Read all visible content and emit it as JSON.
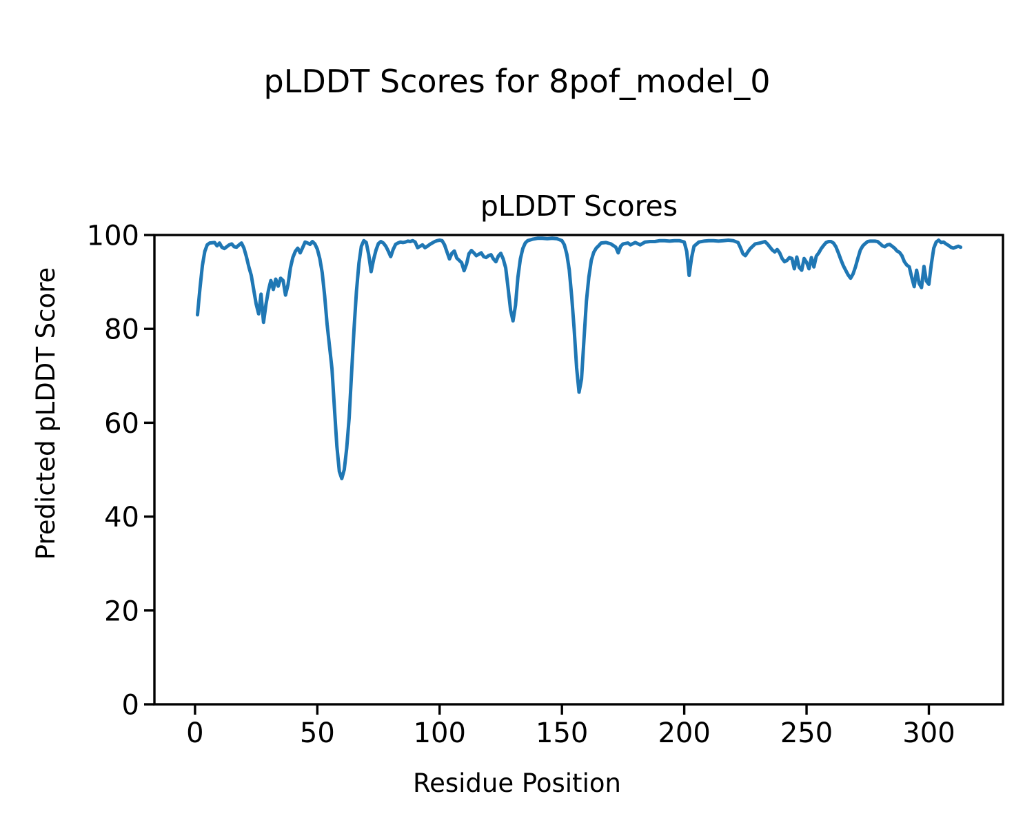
{
  "chart_data": {
    "type": "line",
    "suptitle": "pLDDT Scores for 8pof_model_0",
    "title": "pLDDT Scores",
    "xlabel": "Residue Position",
    "ylabel": "Predicted pLDDT Score",
    "xlim": [
      -16.6,
      330.3
    ],
    "ylim": [
      0,
      100
    ],
    "xticks": [
      0,
      50,
      100,
      150,
      200,
      250,
      300
    ],
    "yticks": [
      0,
      20,
      40,
      60,
      80,
      100
    ],
    "grid": false,
    "legend": "none",
    "line_color": "#1f77b4",
    "axis_color": "#000000",
    "background_color": "#ffffff",
    "series": [
      {
        "name": "pLDDT score",
        "points": [
          [
            1,
            83.0
          ],
          [
            2,
            88.5
          ],
          [
            3,
            93.5
          ],
          [
            4,
            96.5
          ],
          [
            5,
            97.9
          ],
          [
            6,
            98.3
          ],
          [
            8,
            98.4
          ],
          [
            9,
            97.7
          ],
          [
            10,
            98.3
          ],
          [
            11,
            97.4
          ],
          [
            12,
            97.1
          ],
          [
            13,
            97.5
          ],
          [
            14,
            97.9
          ],
          [
            15,
            98.1
          ],
          [
            16,
            97.5
          ],
          [
            17,
            97.4
          ],
          [
            18,
            97.9
          ],
          [
            19,
            98.3
          ],
          [
            20,
            97.2
          ],
          [
            21,
            95.4
          ],
          [
            22,
            93.2
          ],
          [
            23,
            91.4
          ],
          [
            24,
            88.3
          ],
          [
            25,
            85.3
          ],
          [
            26,
            83.2
          ],
          [
            27,
            87.4
          ],
          [
            28,
            81.4
          ],
          [
            29,
            85.2
          ],
          [
            30,
            88.2
          ],
          [
            31,
            90.3
          ],
          [
            32,
            88.4
          ],
          [
            33,
            90.6
          ],
          [
            34,
            89.1
          ],
          [
            35,
            90.8
          ],
          [
            36,
            90.3
          ],
          [
            37,
            87.2
          ],
          [
            38,
            89.4
          ],
          [
            39,
            93.0
          ],
          [
            40,
            95.2
          ],
          [
            41,
            96.5
          ],
          [
            42,
            97.2
          ],
          [
            43,
            96.2
          ],
          [
            44,
            97.3
          ],
          [
            45,
            98.5
          ],
          [
            46,
            98.3
          ],
          [
            47,
            98.0
          ],
          [
            48,
            98.6
          ],
          [
            49,
            98.1
          ],
          [
            50,
            97.0
          ],
          [
            51,
            95.0
          ],
          [
            52,
            92.0
          ],
          [
            53,
            87.0
          ],
          [
            54,
            81.0
          ],
          [
            55,
            76.2
          ],
          [
            56,
            71.5
          ],
          [
            57,
            63.0
          ],
          [
            58,
            55.0
          ],
          [
            59,
            49.6
          ],
          [
            60,
            48.1
          ],
          [
            61,
            50.0
          ],
          [
            62,
            54.5
          ],
          [
            63,
            61.0
          ],
          [
            64,
            70.5
          ],
          [
            65,
            80.0
          ],
          [
            66,
            88.0
          ],
          [
            67,
            94.0
          ],
          [
            68,
            97.6
          ],
          [
            69,
            98.8
          ],
          [
            70,
            98.4
          ],
          [
            71,
            95.8
          ],
          [
            72,
            92.2
          ],
          [
            73,
            94.8
          ],
          [
            74,
            96.8
          ],
          [
            75,
            98.2
          ],
          [
            76,
            98.6
          ],
          [
            77,
            98.3
          ],
          [
            78,
            97.6
          ],
          [
            79,
            96.6
          ],
          [
            80,
            95.4
          ],
          [
            81,
            96.9
          ],
          [
            82,
            98.0
          ],
          [
            83,
            98.3
          ],
          [
            84,
            98.5
          ],
          [
            85,
            98.4
          ],
          [
            86,
            98.5
          ],
          [
            87,
            98.7
          ],
          [
            88,
            98.6
          ],
          [
            89,
            98.8
          ],
          [
            90,
            98.5
          ],
          [
            91,
            97.3
          ],
          [
            92,
            97.6
          ],
          [
            93,
            97.9
          ],
          [
            94,
            97.3
          ],
          [
            95,
            97.6
          ],
          [
            96,
            98.0
          ],
          [
            97,
            98.3
          ],
          [
            98,
            98.6
          ],
          [
            99,
            98.8
          ],
          [
            100,
            98.9
          ],
          [
            101,
            98.8
          ],
          [
            102,
            97.9
          ],
          [
            103,
            96.4
          ],
          [
            104,
            94.9
          ],
          [
            105,
            96.1
          ],
          [
            106,
            96.6
          ],
          [
            107,
            95.1
          ],
          [
            108,
            94.6
          ],
          [
            109,
            94.1
          ],
          [
            110,
            92.4
          ],
          [
            111,
            93.8
          ],
          [
            112,
            96.0
          ],
          [
            113,
            96.7
          ],
          [
            114,
            96.2
          ],
          [
            115,
            95.6
          ],
          [
            116,
            95.9
          ],
          [
            117,
            96.2
          ],
          [
            118,
            95.4
          ],
          [
            119,
            95.2
          ],
          [
            120,
            95.6
          ],
          [
            121,
            95.8
          ],
          [
            122,
            94.9
          ],
          [
            123,
            94.3
          ],
          [
            124,
            95.5
          ],
          [
            125,
            96.1
          ],
          [
            126,
            94.9
          ],
          [
            127,
            93.0
          ],
          [
            128,
            88.7
          ],
          [
            129,
            84.0
          ],
          [
            130,
            81.7
          ],
          [
            131,
            85.0
          ],
          [
            132,
            91.0
          ],
          [
            133,
            94.9
          ],
          [
            134,
            97.1
          ],
          [
            135,
            98.3
          ],
          [
            136,
            98.8
          ],
          [
            138,
            99.1
          ],
          [
            140,
            99.3
          ],
          [
            142,
            99.3
          ],
          [
            144,
            99.2
          ],
          [
            146,
            99.3
          ],
          [
            148,
            99.2
          ],
          [
            150,
            98.8
          ],
          [
            151,
            97.9
          ],
          [
            152,
            95.9
          ],
          [
            153,
            92.6
          ],
          [
            154,
            86.8
          ],
          [
            155,
            80.0
          ],
          [
            156,
            71.7
          ],
          [
            157,
            66.5
          ],
          [
            158,
            69.3
          ],
          [
            159,
            77.6
          ],
          [
            160,
            85.9
          ],
          [
            161,
            91.0
          ],
          [
            162,
            94.6
          ],
          [
            163,
            96.3
          ],
          [
            164,
            97.2
          ],
          [
            165,
            97.7
          ],
          [
            166,
            98.3
          ],
          [
            168,
            98.4
          ],
          [
            170,
            98.1
          ],
          [
            172,
            97.4
          ],
          [
            173,
            96.2
          ],
          [
            174,
            97.6
          ],
          [
            175,
            98.1
          ],
          [
            177,
            98.3
          ],
          [
            178,
            97.9
          ],
          [
            180,
            98.4
          ],
          [
            182,
            97.9
          ],
          [
            184,
            98.5
          ],
          [
            186,
            98.6
          ],
          [
            188,
            98.6
          ],
          [
            190,
            98.8
          ],
          [
            192,
            98.8
          ],
          [
            194,
            98.7
          ],
          [
            196,
            98.8
          ],
          [
            198,
            98.8
          ],
          [
            200,
            98.5
          ],
          [
            201,
            96.5
          ],
          [
            202,
            91.4
          ],
          [
            203,
            95.2
          ],
          [
            204,
            97.6
          ],
          [
            206,
            98.5
          ],
          [
            208,
            98.7
          ],
          [
            210,
            98.8
          ],
          [
            212,
            98.8
          ],
          [
            214,
            98.7
          ],
          [
            216,
            98.8
          ],
          [
            218,
            98.9
          ],
          [
            220,
            98.8
          ],
          [
            222,
            98.4
          ],
          [
            223,
            97.3
          ],
          [
            224,
            96.0
          ],
          [
            225,
            95.6
          ],
          [
            226,
            96.4
          ],
          [
            227,
            97.1
          ],
          [
            229,
            98.1
          ],
          [
            231,
            98.3
          ],
          [
            233,
            98.6
          ],
          [
            234,
            98.1
          ],
          [
            236,
            96.8
          ],
          [
            237,
            96.4
          ],
          [
            238,
            96.9
          ],
          [
            239,
            96.2
          ],
          [
            240,
            95.0
          ],
          [
            241,
            94.3
          ],
          [
            242,
            94.6
          ],
          [
            243,
            95.2
          ],
          [
            244,
            95.0
          ],
          [
            245,
            92.8
          ],
          [
            246,
            95.3
          ],
          [
            247,
            93.1
          ],
          [
            248,
            92.5
          ],
          [
            249,
            95.0
          ],
          [
            250,
            94.2
          ],
          [
            251,
            92.8
          ],
          [
            252,
            95.2
          ],
          [
            253,
            93.2
          ],
          [
            254,
            95.5
          ],
          [
            255,
            96.2
          ],
          [
            256,
            97.1
          ],
          [
            257,
            97.8
          ],
          [
            258,
            98.4
          ],
          [
            259,
            98.6
          ],
          [
            260,
            98.6
          ],
          [
            261,
            98.3
          ],
          [
            262,
            97.5
          ],
          [
            263,
            96.2
          ],
          [
            264,
            94.8
          ],
          [
            265,
            93.5
          ],
          [
            266,
            92.5
          ],
          [
            267,
            91.5
          ],
          [
            268,
            90.8
          ],
          [
            269,
            91.7
          ],
          [
            270,
            93.2
          ],
          [
            271,
            95.1
          ],
          [
            272,
            96.8
          ],
          [
            273,
            97.7
          ],
          [
            274,
            98.2
          ],
          [
            275,
            98.6
          ],
          [
            276,
            98.7
          ],
          [
            277,
            98.7
          ],
          [
            278,
            98.7
          ],
          [
            279,
            98.6
          ],
          [
            280,
            98.2
          ],
          [
            281,
            97.7
          ],
          [
            282,
            97.5
          ],
          [
            283,
            97.9
          ],
          [
            284,
            98.0
          ],
          [
            285,
            97.6
          ],
          [
            286,
            97.2
          ],
          [
            287,
            96.6
          ],
          [
            288,
            96.3
          ],
          [
            289,
            95.6
          ],
          [
            290,
            94.3
          ],
          [
            291,
            93.6
          ],
          [
            292,
            93.2
          ],
          [
            293,
            91.0
          ],
          [
            294,
            89.0
          ],
          [
            295,
            92.5
          ],
          [
            296,
            89.7
          ],
          [
            297,
            88.8
          ],
          [
            298,
            93.3
          ],
          [
            299,
            90.2
          ],
          [
            300,
            89.5
          ],
          [
            301,
            93.7
          ],
          [
            302,
            97.2
          ],
          [
            303,
            98.5
          ],
          [
            304,
            98.9
          ],
          [
            305,
            98.4
          ],
          [
            306,
            98.5
          ],
          [
            307,
            98.1
          ],
          [
            308,
            97.8
          ],
          [
            309,
            97.4
          ],
          [
            310,
            97.2
          ],
          [
            311,
            97.4
          ],
          [
            312,
            97.6
          ],
          [
            313,
            97.4
          ]
        ]
      }
    ]
  }
}
